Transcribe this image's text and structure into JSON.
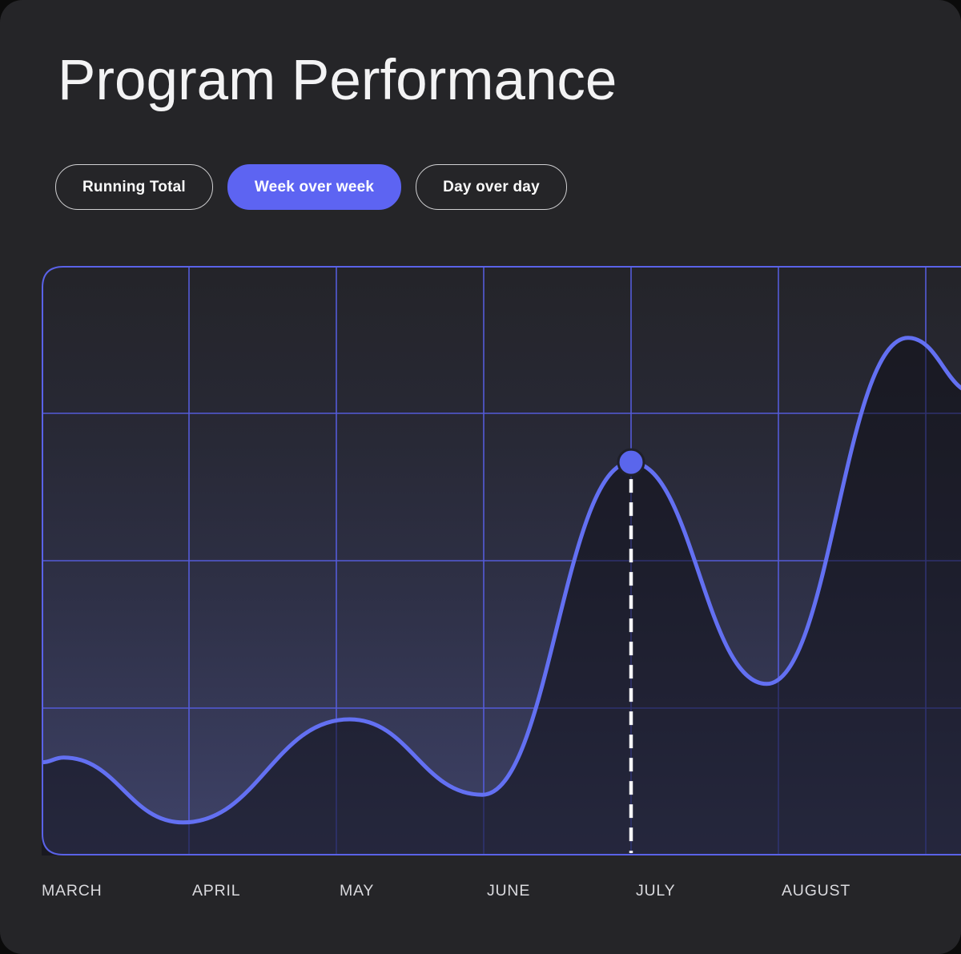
{
  "page_title": "Program Performance",
  "tabs": [
    {
      "label": "Running Total",
      "active": false
    },
    {
      "label": "Week over week",
      "active": true
    },
    {
      "label": "Day over day",
      "active": false
    }
  ],
  "colors": {
    "accent": "#5d64f2",
    "grid_line": "#545bd8",
    "chart_border": "#5a62e8",
    "series_line": "#6370f2",
    "highlight_dot": "#5a66ec",
    "dashed_marker": "#f5f5f7",
    "card_background": "#252528",
    "axis_label": "#dadade"
  },
  "chart_data": {
    "type": "line",
    "title": "Program Performance",
    "series_name": "Week over week",
    "categories": [
      "MARCH",
      "APRIL",
      "MAY",
      "JUNE",
      "JULY",
      "AUGUST"
    ],
    "xlabel": "",
    "ylabel": "",
    "ylim": [
      0,
      100
    ],
    "grid": "on",
    "y_axis_labels": "none",
    "points": [
      {
        "m": 0.0,
        "v": 15.8
      },
      {
        "m": 0.15,
        "v": 16.6
      },
      {
        "m": 0.96,
        "v": 5.6
      },
      {
        "m": 2.09,
        "v": 23.1
      },
      {
        "m": 2.99,
        "v": 10.3
      },
      {
        "m": 4.0,
        "v": 66.7,
        "highlight": true
      },
      {
        "m": 4.92,
        "v": 29.1
      },
      {
        "m": 5.88,
        "v": 87.8
      },
      {
        "m": 6.35,
        "v": 78.3
      }
    ],
    "highlighted_point": {
      "month": "JULY",
      "m": 4.0,
      "v": 66.7,
      "marker": "dot-with-dashed-dropline"
    }
  }
}
